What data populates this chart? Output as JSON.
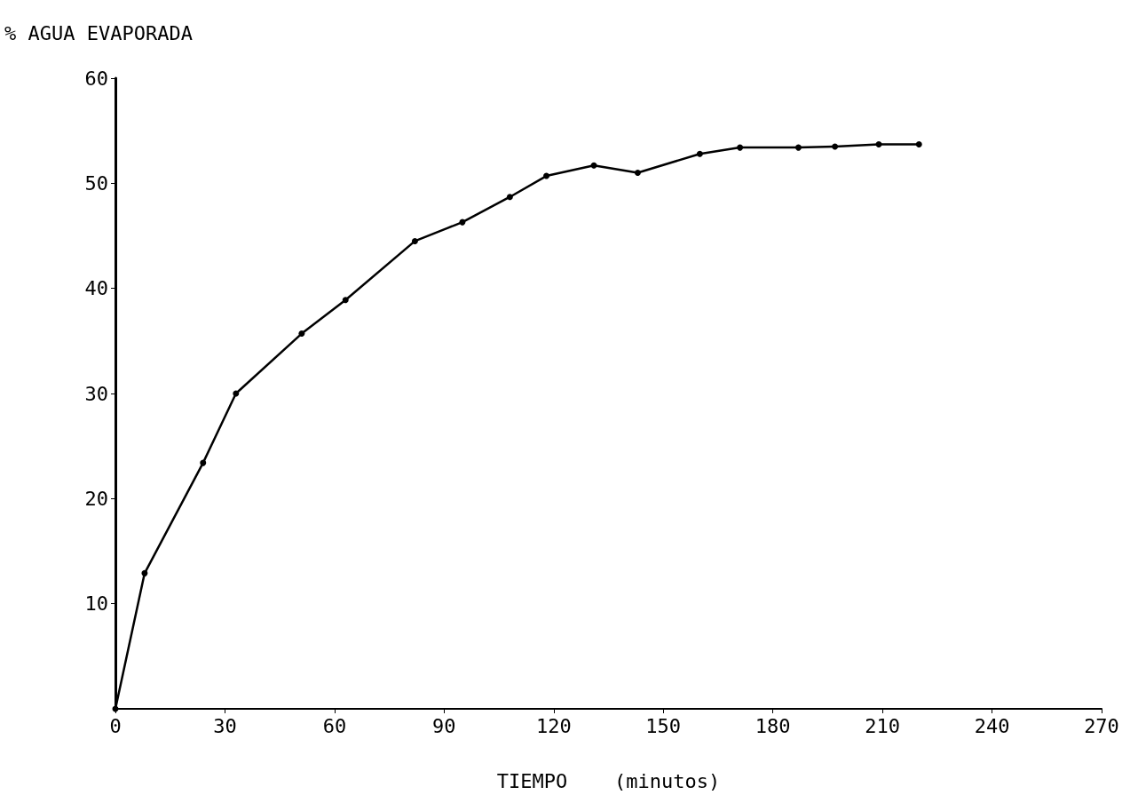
{
  "chart_data": {
    "type": "line",
    "xlabel": "TIEMPO    (minutos)",
    "ylabel": "% AGUA EVAPORADA",
    "x": [
      0,
      8,
      24,
      33,
      51,
      63,
      82,
      95,
      108,
      118,
      131,
      143,
      160,
      171,
      187,
      197,
      209,
      220
    ],
    "series": [
      {
        "color": "#000000",
        "values": [
          0,
          12.9,
          23.4,
          30,
          35.7,
          38.9,
          44.5,
          46.3,
          48.7,
          50.7,
          51.7,
          51,
          52.8,
          53.4,
          53.4,
          53.5,
          53.7,
          53.7
        ]
      }
    ],
    "xlim": [
      0,
      270
    ],
    "xticks": [
      0,
      30,
      60,
      90,
      120,
      150,
      180,
      210,
      240,
      270
    ],
    "ylim": [
      0,
      60
    ],
    "yticks": [
      10,
      20,
      30,
      40,
      50,
      60
    ],
    "grid": false,
    "marker": "circle",
    "line_style": "solid"
  }
}
